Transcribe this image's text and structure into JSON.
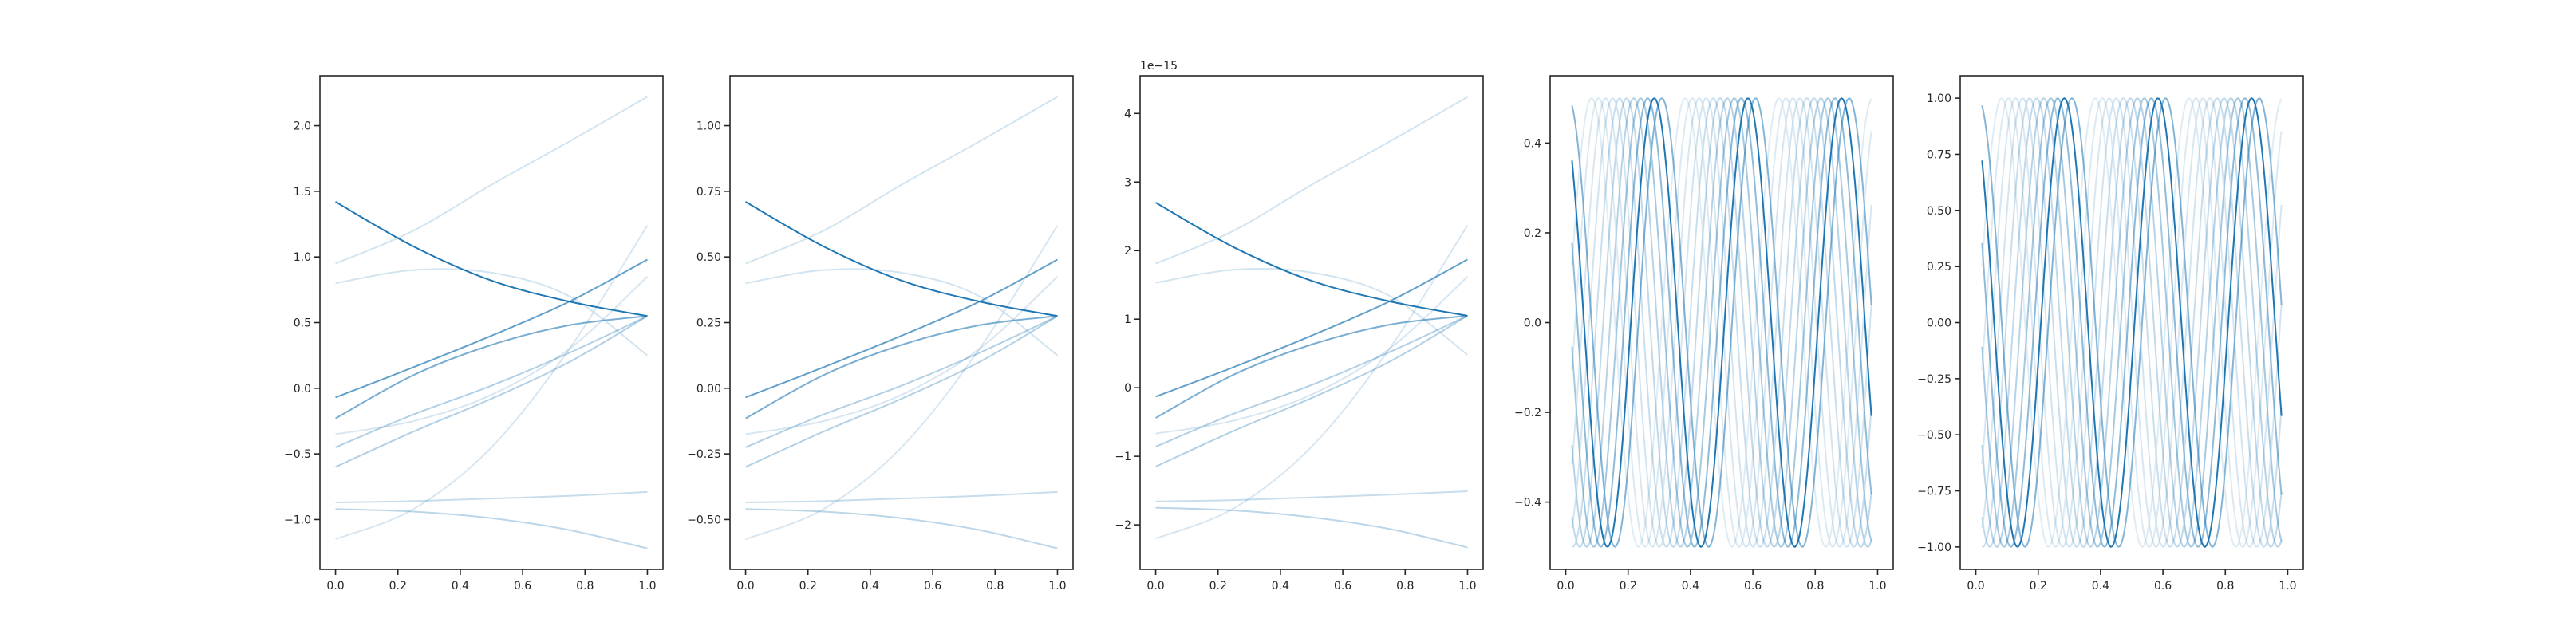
{
  "figure": {
    "background": "#ffffff",
    "axes_color": "#262626",
    "line_color": "#1f77b4"
  },
  "chart_data": [
    {
      "type": "line",
      "xlim": [
        -0.05,
        1.05
      ],
      "ylim": [
        -1.38,
        2.38
      ],
      "x_ticks": [
        0.0,
        0.2,
        0.4,
        0.6,
        0.8,
        1.0
      ],
      "x_tick_labels": [
        "0.0",
        "0.2",
        "0.4",
        "0.6",
        "0.8",
        "1.0"
      ],
      "y_ticks": [
        -1.0,
        -0.5,
        0.0,
        0.5,
        1.0,
        1.5,
        2.0
      ],
      "y_tick_labels": [
        "−1.0",
        "−0.5",
        "0.0",
        "0.5",
        "1.0",
        "1.5",
        "2.0"
      ],
      "offset_text": "",
      "series": [
        {
          "opacity": 1.0,
          "x": [
            0,
            0.25,
            0.5,
            0.75,
            1.0
          ],
          "y": [
            1.42,
            1.08,
            0.82,
            0.66,
            0.55
          ]
        },
        {
          "opacity": 0.7,
          "x": [
            0,
            0.25,
            0.5,
            0.75,
            1.0
          ],
          "y": [
            -0.07,
            0.16,
            0.4,
            0.66,
            0.98
          ]
        },
        {
          "opacity": 0.6,
          "x": [
            0,
            0.25,
            0.5,
            0.75,
            1.0
          ],
          "y": [
            -0.23,
            0.1,
            0.33,
            0.48,
            0.55
          ]
        },
        {
          "opacity": 0.35,
          "x": [
            0,
            0.25,
            0.5,
            0.75,
            1.0
          ],
          "y": [
            -0.45,
            -0.2,
            0.02,
            0.27,
            0.55
          ]
        },
        {
          "opacity": 0.35,
          "x": [
            0,
            0.25,
            0.5,
            0.75,
            1.0
          ],
          "y": [
            -0.6,
            -0.33,
            -0.08,
            0.2,
            0.55
          ]
        },
        {
          "opacity": 0.3,
          "x": [
            0,
            0.25,
            0.5,
            0.75,
            1.0
          ],
          "y": [
            -0.92,
            -0.94,
            -0.99,
            -1.08,
            -1.22
          ]
        },
        {
          "opacity": 0.25,
          "x": [
            0,
            0.25,
            0.5,
            0.75,
            1.0
          ],
          "y": [
            -0.87,
            -0.86,
            -0.84,
            -0.82,
            -0.79
          ]
        },
        {
          "opacity": 0.2,
          "x": [
            0,
            0.25,
            0.5,
            0.75,
            1.0
          ],
          "y": [
            0.95,
            1.2,
            1.55,
            1.88,
            2.22
          ]
        },
        {
          "opacity": 0.2,
          "x": [
            0,
            0.25,
            0.5,
            0.75,
            1.0
          ],
          "y": [
            0.8,
            0.9,
            0.88,
            0.7,
            0.25
          ]
        },
        {
          "opacity": 0.18,
          "x": [
            0,
            0.25,
            0.5,
            0.75,
            1.0
          ],
          "y": [
            -1.15,
            -0.92,
            -0.45,
            0.3,
            1.24
          ]
        },
        {
          "opacity": 0.18,
          "x": [
            0,
            0.25,
            0.5,
            0.75,
            1.0
          ],
          "y": [
            -0.35,
            -0.25,
            -0.05,
            0.3,
            0.85
          ]
        }
      ]
    },
    {
      "type": "line",
      "xlim": [
        -0.05,
        1.05
      ],
      "ylim": [
        -0.69,
        1.19
      ],
      "x_ticks": [
        0.0,
        0.2,
        0.4,
        0.6,
        0.8,
        1.0
      ],
      "x_tick_labels": [
        "0.0",
        "0.2",
        "0.4",
        "0.6",
        "0.8",
        "1.0"
      ],
      "y_ticks": [
        -0.5,
        -0.25,
        0.0,
        0.25,
        0.5,
        0.75,
        1.0
      ],
      "y_tick_labels": [
        "−0.50",
        "−0.25",
        "0.00",
        "0.25",
        "0.50",
        "0.75",
        "1.00"
      ],
      "offset_text": "",
      "series": [
        {
          "opacity": 1.0,
          "x": [
            0,
            0.25,
            0.5,
            0.75,
            1.0
          ],
          "y": [
            0.71,
            0.54,
            0.41,
            0.33,
            0.275
          ]
        },
        {
          "opacity": 0.7,
          "x": [
            0,
            0.25,
            0.5,
            0.75,
            1.0
          ],
          "y": [
            -0.035,
            0.08,
            0.2,
            0.33,
            0.49
          ]
        },
        {
          "opacity": 0.6,
          "x": [
            0,
            0.25,
            0.5,
            0.75,
            1.0
          ],
          "y": [
            -0.115,
            0.05,
            0.165,
            0.24,
            0.275
          ]
        },
        {
          "opacity": 0.35,
          "x": [
            0,
            0.25,
            0.5,
            0.75,
            1.0
          ],
          "y": [
            -0.225,
            -0.1,
            0.01,
            0.135,
            0.275
          ]
        },
        {
          "opacity": 0.35,
          "x": [
            0,
            0.25,
            0.5,
            0.75,
            1.0
          ],
          "y": [
            -0.3,
            -0.165,
            -0.04,
            0.1,
            0.275
          ]
        },
        {
          "opacity": 0.3,
          "x": [
            0,
            0.25,
            0.5,
            0.75,
            1.0
          ],
          "y": [
            -0.46,
            -0.47,
            -0.495,
            -0.54,
            -0.61
          ]
        },
        {
          "opacity": 0.25,
          "x": [
            0,
            0.25,
            0.5,
            0.75,
            1.0
          ],
          "y": [
            -0.435,
            -0.43,
            -0.42,
            -0.41,
            -0.395
          ]
        },
        {
          "opacity": 0.2,
          "x": [
            0,
            0.25,
            0.5,
            0.75,
            1.0
          ],
          "y": [
            0.475,
            0.6,
            0.775,
            0.94,
            1.11
          ]
        },
        {
          "opacity": 0.2,
          "x": [
            0,
            0.25,
            0.5,
            0.75,
            1.0
          ],
          "y": [
            0.4,
            0.45,
            0.44,
            0.35,
            0.125
          ]
        },
        {
          "opacity": 0.18,
          "x": [
            0,
            0.25,
            0.5,
            0.75,
            1.0
          ],
          "y": [
            -0.575,
            -0.46,
            -0.225,
            0.15,
            0.62
          ]
        },
        {
          "opacity": 0.18,
          "x": [
            0,
            0.25,
            0.5,
            0.75,
            1.0
          ],
          "y": [
            -0.175,
            -0.125,
            -0.025,
            0.15,
            0.425
          ]
        }
      ]
    },
    {
      "type": "line",
      "xlim": [
        -0.05,
        1.05
      ],
      "ylim": [
        -2.65,
        4.55
      ],
      "x_ticks": [
        0.0,
        0.2,
        0.4,
        0.6,
        0.8,
        1.0
      ],
      "x_tick_labels": [
        "0.0",
        "0.2",
        "0.4",
        "0.6",
        "0.8",
        "1.0"
      ],
      "y_ticks": [
        -2,
        -1,
        0,
        1,
        2,
        3,
        4
      ],
      "y_tick_labels": [
        "−2",
        "−1",
        "0",
        "1",
        "2",
        "3",
        "4"
      ],
      "offset_text": "1e−15",
      "series": [
        {
          "opacity": 1.0,
          "x": [
            0,
            0.25,
            0.5,
            0.75,
            1.0
          ],
          "y": [
            2.7,
            2.05,
            1.56,
            1.26,
            1.05
          ]
        },
        {
          "opacity": 0.7,
          "x": [
            0,
            0.25,
            0.5,
            0.75,
            1.0
          ],
          "y": [
            -0.13,
            0.3,
            0.76,
            1.26,
            1.87
          ]
        },
        {
          "opacity": 0.6,
          "x": [
            0,
            0.25,
            0.5,
            0.75,
            1.0
          ],
          "y": [
            -0.44,
            0.19,
            0.63,
            0.92,
            1.05
          ]
        },
        {
          "opacity": 0.35,
          "x": [
            0,
            0.25,
            0.5,
            0.75,
            1.0
          ],
          "y": [
            -0.86,
            -0.38,
            0.04,
            0.52,
            1.05
          ]
        },
        {
          "opacity": 0.35,
          "x": [
            0,
            0.25,
            0.5,
            0.75,
            1.0
          ],
          "y": [
            -1.15,
            -0.63,
            -0.15,
            0.38,
            1.05
          ]
        },
        {
          "opacity": 0.3,
          "x": [
            0,
            0.25,
            0.5,
            0.75,
            1.0
          ],
          "y": [
            -1.75,
            -1.79,
            -1.89,
            -2.06,
            -2.33
          ]
        },
        {
          "opacity": 0.25,
          "x": [
            0,
            0.25,
            0.5,
            0.75,
            1.0
          ],
          "y": [
            -1.66,
            -1.64,
            -1.6,
            -1.56,
            -1.51
          ]
        },
        {
          "opacity": 0.2,
          "x": [
            0,
            0.25,
            0.5,
            0.75,
            1.0
          ],
          "y": [
            1.81,
            2.29,
            2.96,
            3.59,
            4.24
          ]
        },
        {
          "opacity": 0.2,
          "x": [
            0,
            0.25,
            0.5,
            0.75,
            1.0
          ],
          "y": [
            1.53,
            1.72,
            1.68,
            1.34,
            0.48
          ]
        },
        {
          "opacity": 0.18,
          "x": [
            0,
            0.25,
            0.5,
            0.75,
            1.0
          ],
          "y": [
            -2.2,
            -1.76,
            -0.86,
            0.57,
            2.37
          ]
        },
        {
          "opacity": 0.18,
          "x": [
            0,
            0.25,
            0.5,
            0.75,
            1.0
          ],
          "y": [
            -0.67,
            -0.48,
            -0.1,
            0.57,
            1.62
          ]
        }
      ]
    },
    {
      "type": "line",
      "xlim": [
        -0.05,
        1.05
      ],
      "ylim": [
        -0.55,
        0.55
      ],
      "x_ticks": [
        0.0,
        0.2,
        0.4,
        0.6,
        0.8,
        1.0
      ],
      "x_tick_labels": [
        "0.0",
        "0.2",
        "0.4",
        "0.6",
        "0.8",
        "1.0"
      ],
      "y_ticks": [
        -0.4,
        -0.2,
        0.0,
        0.2,
        0.4
      ],
      "y_tick_labels": [
        "−0.4",
        "−0.2",
        "0.0",
        "0.2",
        "0.4"
      ],
      "offset_text": "",
      "wave": {
        "amplitude": 0.5,
        "frequency": 3.33,
        "x_start": 0.02,
        "x_end": 0.98
      },
      "series": [
        {
          "opacity": 1.0,
          "phase": 0.345
        },
        {
          "opacity": 0.55,
          "phase": -0.163
        },
        {
          "opacity": 0.5,
          "phase": 0.79
        },
        {
          "opacity": 0.4,
          "phase": 1.26
        },
        {
          "opacity": 0.32,
          "phase": 1.73
        },
        {
          "opacity": 0.28,
          "phase": 2.2
        },
        {
          "opacity": 0.24,
          "phase": 2.67
        },
        {
          "opacity": 0.2,
          "phase": 3.14
        },
        {
          "opacity": 0.18,
          "phase": 3.61
        },
        {
          "opacity": 0.16,
          "phase": 4.08
        },
        {
          "opacity": 0.14,
          "phase": 4.55
        }
      ]
    },
    {
      "type": "line",
      "xlim": [
        -0.05,
        1.05
      ],
      "ylim": [
        -1.1,
        1.1
      ],
      "x_ticks": [
        0.0,
        0.2,
        0.4,
        0.6,
        0.8,
        1.0
      ],
      "x_tick_labels": [
        "0.0",
        "0.2",
        "0.4",
        "0.6",
        "0.8",
        "1.0"
      ],
      "y_ticks": [
        -1.0,
        -0.75,
        -0.5,
        -0.25,
        0.0,
        0.25,
        0.5,
        0.75,
        1.0
      ],
      "y_tick_labels": [
        "−1.00",
        "−0.75",
        "−0.50",
        "−0.25",
        "0.00",
        "0.25",
        "0.50",
        "0.75",
        "1.00"
      ],
      "offset_text": "",
      "wave": {
        "amplitude": 1.0,
        "frequency": 3.33,
        "x_start": 0.02,
        "x_end": 0.98
      },
      "series": [
        {
          "opacity": 1.0,
          "phase": 0.345
        },
        {
          "opacity": 0.55,
          "phase": -0.163
        },
        {
          "opacity": 0.5,
          "phase": 0.79
        },
        {
          "opacity": 0.4,
          "phase": 1.26
        },
        {
          "opacity": 0.32,
          "phase": 1.73
        },
        {
          "opacity": 0.28,
          "phase": 2.2
        },
        {
          "opacity": 0.24,
          "phase": 2.67
        },
        {
          "opacity": 0.2,
          "phase": 3.14
        },
        {
          "opacity": 0.18,
          "phase": 3.61
        },
        {
          "opacity": 0.16,
          "phase": 4.08
        },
        {
          "opacity": 0.14,
          "phase": 4.55
        }
      ]
    }
  ]
}
